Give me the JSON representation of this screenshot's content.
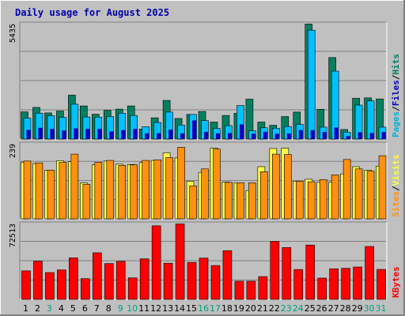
{
  "title": "Daily usage for August 2025",
  "colors": {
    "background": "#c0c0c0",
    "plot_bg": "#c0c0c0",
    "grid": "#808080",
    "title": "#0000b0",
    "hits": "#008060",
    "files": "#00c0ff",
    "pages": "#00b0e0",
    "pages_dark": "#0000c0",
    "visits": "#ffff40",
    "sites": "#ff9010",
    "kbytes": "#ff0000",
    "weekend_label": "#00a080",
    "weekday_label": "#000000"
  },
  "chart_data": [
    {
      "type": "bar",
      "name": "hits-files-pages",
      "ymax_label": "5435",
      "ylim": [
        0,
        5435
      ],
      "legend": [
        {
          "text": "Pages",
          "color": "#00b0e0"
        },
        {
          "text": "/",
          "color": "#000000"
        },
        {
          "text": "Files",
          "color": "#0000c0"
        },
        {
          "text": "/",
          "color": "#000000"
        },
        {
          "text": "Hits",
          "color": "#008060"
        }
      ],
      "x": [
        1,
        2,
        3,
        4,
        5,
        6,
        7,
        8,
        9,
        10,
        11,
        12,
        13,
        14,
        15,
        16,
        17,
        18,
        19,
        20,
        21,
        22,
        23,
        24,
        25,
        26,
        27,
        28,
        29,
        30,
        31
      ],
      "series": [
        {
          "name": "Hits",
          "values": [
            1280,
            1490,
            1230,
            1320,
            2070,
            1560,
            1170,
            1350,
            1410,
            1560,
            470,
            1000,
            1820,
            970,
            1160,
            1300,
            800,
            1110,
            1210,
            1880,
            800,
            650,
            1060,
            1270,
            5420,
            1400,
            3840,
            450,
            1920,
            1940,
            1890
          ]
        },
        {
          "name": "Files",
          "values": [
            990,
            1220,
            1100,
            1020,
            1640,
            1040,
            1030,
            1060,
            1220,
            1110,
            580,
            780,
            1270,
            660,
            1160,
            870,
            500,
            630,
            1580,
            390,
            530,
            510,
            590,
            690,
            5130,
            560,
            3200,
            320,
            1600,
            1800,
            560
          ]
        },
        {
          "name": "Pages",
          "values": [
            430,
            530,
            480,
            400,
            500,
            480,
            480,
            360,
            420,
            480,
            270,
            280,
            440,
            270,
            880,
            340,
            270,
            280,
            690,
            250,
            340,
            250,
            260,
            420,
            420,
            330,
            540,
            140,
            320,
            280,
            330
          ]
        }
      ]
    },
    {
      "type": "bar",
      "name": "visits-sites",
      "ymax_label": "239",
      "ylim": [
        0,
        239
      ],
      "legend": [
        {
          "text": "Sites",
          "color": "#ff9010"
        },
        {
          "text": "/",
          "color": "#000000"
        },
        {
          "text": "Visits",
          "color": "#ffff40"
        }
      ],
      "x": [
        1,
        2,
        3,
        4,
        5,
        6,
        7,
        8,
        9,
        10,
        11,
        12,
        13,
        14,
        15,
        16,
        17,
        18,
        19,
        20,
        21,
        22,
        23,
        24,
        25,
        26,
        27,
        28,
        29,
        30,
        31
      ],
      "series": [
        {
          "name": "Visits",
          "values": [
            180,
            176,
            155,
            185,
            182,
            114,
            172,
            184,
            174,
            173,
            179,
            186,
            210,
            194,
            120,
            148,
            225,
            117,
            115,
            90,
            166,
            224,
            225,
            120,
            126,
            116,
            117,
            143,
            166,
            155,
            168
          ]
        },
        {
          "name": "Sites",
          "values": [
            184,
            178,
            155,
            180,
            206,
            110,
            180,
            186,
            170,
            172,
            186,
            188,
            195,
            228,
            105,
            159,
            222,
            116,
            115,
            115,
            150,
            206,
            205,
            120,
            118,
            125,
            140,
            189,
            159,
            152,
            201
          ]
        }
      ]
    },
    {
      "type": "bar",
      "name": "kbytes",
      "ymax_label": "72513",
      "ylim": [
        0,
        72513
      ],
      "legend": [
        {
          "text": "KBytes",
          "color": "#ff0000"
        }
      ],
      "x": [
        1,
        2,
        3,
        4,
        5,
        6,
        7,
        8,
        9,
        10,
        11,
        12,
        13,
        14,
        15,
        16,
        17,
        18,
        19,
        20,
        21,
        22,
        23,
        24,
        25,
        26,
        27,
        28,
        29,
        30,
        31
      ],
      "series": [
        {
          "name": "KBytes",
          "values": [
            27300,
            36500,
            25700,
            28200,
            39700,
            19900,
            44600,
            34300,
            36400,
            20600,
            38800,
            70400,
            34600,
            72200,
            35400,
            39500,
            32400,
            46600,
            17400,
            17400,
            21800,
            55500,
            49600,
            28600,
            52000,
            20400,
            29300,
            29700,
            31000,
            50600,
            28700
          ]
        }
      ]
    }
  ],
  "x_labels": [
    {
      "text": "1",
      "weekend": false
    },
    {
      "text": "2",
      "weekend": false
    },
    {
      "text": "3",
      "weekend": true
    },
    {
      "text": "4",
      "weekend": false
    },
    {
      "text": "5",
      "weekend": false
    },
    {
      "text": "6",
      "weekend": false
    },
    {
      "text": "7",
      "weekend": false
    },
    {
      "text": "8",
      "weekend": false
    },
    {
      "text": "9",
      "weekend": true
    },
    {
      "text": "10",
      "weekend": true
    },
    {
      "text": "11",
      "weekend": false
    },
    {
      "text": "12",
      "weekend": false
    },
    {
      "text": "13",
      "weekend": false
    },
    {
      "text": "14",
      "weekend": false
    },
    {
      "text": "15",
      "weekend": false
    },
    {
      "text": "16",
      "weekend": true
    },
    {
      "text": "17",
      "weekend": true
    },
    {
      "text": "18",
      "weekend": false
    },
    {
      "text": "19",
      "weekend": false
    },
    {
      "text": "20",
      "weekend": false
    },
    {
      "text": "21",
      "weekend": false
    },
    {
      "text": "22",
      "weekend": false
    },
    {
      "text": "23",
      "weekend": true
    },
    {
      "text": "24",
      "weekend": true
    },
    {
      "text": "25",
      "weekend": false
    },
    {
      "text": "26",
      "weekend": false
    },
    {
      "text": "27",
      "weekend": false
    },
    {
      "text": "28",
      "weekend": false
    },
    {
      "text": "29",
      "weekend": false
    },
    {
      "text": "30",
      "weekend": true
    },
    {
      "text": "31",
      "weekend": true
    }
  ]
}
